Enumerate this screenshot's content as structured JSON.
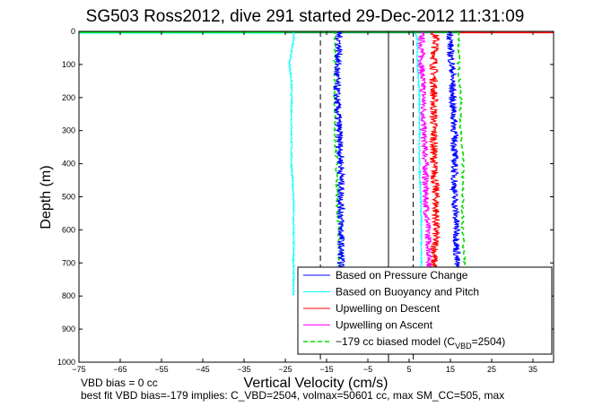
{
  "chart_data": {
    "type": "line",
    "title": "SG503 Ross2012, dive 291 started 29-Dec-2012 11:31:09",
    "xlabel": "Vertical Velocity (cm/s)",
    "ylabel": "Depth (m)",
    "xlim": [
      -75,
      40
    ],
    "ylim": [
      0,
      1000
    ],
    "y_reversed": true,
    "x_ticks": [
      "-75",
      "-65",
      "-55",
      "-45",
      "-35",
      "-25",
      "-15",
      "-5",
      "5",
      "15",
      "25",
      "35"
    ],
    "y_ticks": [
      "0",
      "100",
      "200",
      "300",
      "400",
      "500",
      "600",
      "700",
      "800",
      "900",
      "1000"
    ],
    "grid": false,
    "legend_position": "bottom-right",
    "colors": {
      "pressure": "#0000ff",
      "buoyancy": "#00ffff",
      "upwelling_descent": "#ff0000",
      "upwelling_ascent": "#ff00ff",
      "model": "#00dd00"
    },
    "legend": [
      {
        "key": "pressure",
        "label": "Based on Pressure Change"
      },
      {
        "key": "buoyancy",
        "label": "Based on Buoyancy and Pitch"
      },
      {
        "key": "upwelling_descent",
        "label": "Upwelling on Descent"
      },
      {
        "key": "upwelling_ascent",
        "label": "Upwelling on Ascent"
      },
      {
        "key": "model",
        "label_main": "−179 cc biased model (C",
        "label_sub": "VBD",
        "label_end": "=2504)"
      }
    ],
    "series": [
      {
        "key": "pressure",
        "depth": [
          0,
          20,
          60,
          120,
          200,
          300,
          400,
          500,
          600,
          700,
          720
        ],
        "values": [
          -12,
          -12,
          -12,
          -12.5,
          -12.5,
          -12,
          -11.5,
          -11.5,
          -11.5,
          -11.5,
          -11.5
        ],
        "noise": 0.9
      },
      {
        "key": "pressure",
        "depth": [
          0,
          20,
          60,
          120,
          200,
          300,
          400,
          500,
          600,
          700,
          720
        ],
        "values": [
          15,
          15,
          15,
          15.5,
          15.5,
          16,
          16,
          16,
          16.5,
          16.5,
          16.5
        ],
        "noise": 0.9
      },
      {
        "key": "buoyancy",
        "depth": [
          0,
          30,
          60,
          100,
          150,
          200,
          300,
          400,
          500,
          600,
          700,
          800
        ],
        "values": [
          -23,
          -23,
          -23.5,
          -24,
          -23.5,
          -23.5,
          -23.5,
          -23.5,
          -23,
          -23,
          -23,
          -23
        ],
        "noise": 0.2
      },
      {
        "key": "buoyancy",
        "depth": [
          0,
          20,
          100,
          200,
          300,
          400,
          500,
          600,
          700,
          730
        ],
        "values": [
          6,
          7,
          7,
          7.5,
          7.5,
          7.5,
          7.8,
          8,
          8,
          8
        ],
        "noise": 0.2
      },
      {
        "key": "upwelling_descent",
        "depth": [
          0,
          20,
          100,
          200,
          300,
          400,
          500,
          600,
          700,
          720
        ],
        "values": [
          11,
          11.5,
          11,
          11,
          11,
          11,
          11.5,
          11.5,
          11,
          11
        ],
        "noise": 1.0
      },
      {
        "key": "upwelling_ascent",
        "depth": [
          0,
          20,
          100,
          200,
          300,
          400,
          500,
          600,
          700,
          720
        ],
        "values": [
          8,
          8,
          8,
          8.5,
          8.5,
          9,
          9,
          9.5,
          10,
          10
        ],
        "noise": 0.8
      },
      {
        "key": "model",
        "depth": [
          0,
          20,
          100,
          200,
          300,
          400,
          500,
          600,
          700,
          720
        ],
        "values": [
          -13,
          -13,
          -13,
          -13,
          -13,
          -12.5,
          -12.5,
          -12,
          -12,
          -12
        ],
        "noise": 0.3,
        "dashed": true
      },
      {
        "key": "model",
        "depth": [
          0,
          20,
          100,
          200,
          300,
          400,
          500,
          600,
          700,
          720
        ],
        "values": [
          17,
          17,
          17,
          17.5,
          17.5,
          18,
          18,
          18,
          18.5,
          18.5
        ],
        "noise": 0.3,
        "dashed": true
      }
    ],
    "surface_lines": [
      {
        "key": "pressure",
        "x0": -75,
        "x1": 17,
        "depth": 1
      },
      {
        "key": "buoyancy",
        "x0": -75,
        "x1": -25,
        "depth": 2
      },
      {
        "key": "model",
        "x0": -75,
        "x1": 18,
        "depth": 0
      },
      {
        "key": "upwelling_descent",
        "x0": 17,
        "x1": 40,
        "depth": 1
      }
    ],
    "reference_lines": [
      {
        "x": -16.5,
        "style": "dashed"
      },
      {
        "x": 0,
        "style": "solid"
      },
      {
        "x": 6,
        "style": "dashed"
      }
    ]
  },
  "notes": {
    "line1": "VBD bias = 0 cc",
    "line2": "best fit VBD bias=-179 implies: C_VBD=2504, volmax=50601 cc, max SM_CC=505, max"
  }
}
